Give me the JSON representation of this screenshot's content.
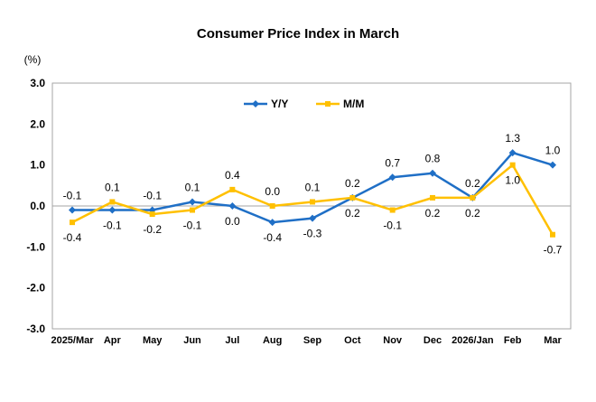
{
  "chart_data": {
    "type": "line",
    "title": "Consumer Price Index in March",
    "ylabel": "(%)",
    "xlabel": "",
    "ylim": [
      -3.0,
      3.0
    ],
    "yticks": [
      "3.0",
      "2.0",
      "1.0",
      "0.0",
      "-1.0",
      "-2.0",
      "-3.0"
    ],
    "ytick_values": [
      3,
      2,
      1,
      0,
      -1,
      -2,
      -3
    ],
    "grid": false,
    "legend_placement": "top-center",
    "categories": [
      "2025/Mar",
      "Apr",
      "May",
      "Jun",
      "Jul",
      "Aug",
      "Sep",
      "Oct",
      "Nov",
      "Dec",
      "2026/Jan",
      "Feb",
      "Mar"
    ],
    "series": [
      {
        "name": "Y/Y",
        "color": "#1F6FC6",
        "marker": "diamond",
        "values": [
          -0.1,
          -0.1,
          -0.1,
          0.1,
          0.0,
          -0.4,
          -0.3,
          0.2,
          0.7,
          0.8,
          0.2,
          1.3,
          1.0
        ],
        "labels": [
          "-0.1",
          "-0.1",
          "-0.1",
          "0.1",
          "0.0",
          "-0.4",
          "-0.3",
          "0.2",
          "0.7",
          "0.8",
          "0.2",
          "1.3",
          "1.0"
        ]
      },
      {
        "name": "M/M",
        "color": "#FFC000",
        "marker": "square",
        "values": [
          -0.4,
          0.1,
          -0.2,
          -0.1,
          0.4,
          0.0,
          0.1,
          0.2,
          -0.1,
          0.2,
          0.2,
          1.0,
          -0.7
        ],
        "labels": [
          "-0.4",
          "0.1",
          "-0.2",
          "-0.1",
          "0.4",
          "0.0",
          "0.1",
          "0.2",
          "-0.1",
          "0.2",
          "0.2",
          "1.0",
          "-0.7"
        ]
      }
    ]
  }
}
